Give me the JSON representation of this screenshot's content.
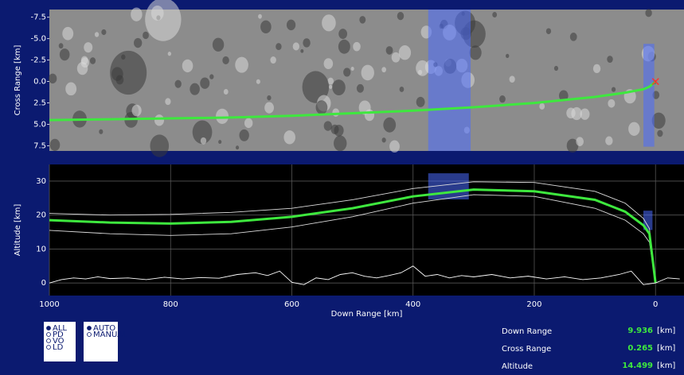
{
  "chart_data": [
    {
      "type": "line",
      "y_label": "Cross Range [km]",
      "xlim": [
        1000,
        -47
      ],
      "ylim": [
        8.1,
        -8.4
      ],
      "yticks": [
        -7.5,
        {
          "value": -5,
          "label": "-5.0"
        },
        -2.5,
        {
          "value": 0,
          "label": "0.0"
        },
        2.5,
        {
          "value": 5,
          "label": "5.0"
        },
        7.5
      ],
      "x": [
        1000,
        900,
        800,
        700,
        600,
        500,
        400,
        300,
        200,
        100,
        50,
        20,
        10,
        0
      ],
      "series": [
        {
          "color": "#3ee83e",
          "values": [
            4.5,
            4.4,
            4.3,
            4.2,
            4.0,
            3.7,
            3.4,
            3.0,
            2.5,
            1.8,
            1.3,
            0.9,
            0.6,
            0.0
          ]
        }
      ],
      "highlight_color": "#4a6bff",
      "highlights": [
        {
          "x": [
            375,
            305
          ],
          "y": [
            8.1,
            -8.4
          ]
        },
        {
          "x": [
            20,
            2
          ],
          "y": [
            7.6,
            -4.4
          ]
        }
      ],
      "target": {
        "x": 0,
        "y": 0,
        "color": "#ff3030"
      }
    },
    {
      "type": "line",
      "x_label": "Down Range [km]",
      "y_label": "Altitude [km]",
      "xlim": [
        1000,
        -47
      ],
      "ylim": [
        -3.7,
        34.9
      ],
      "xticks": [
        1000,
        800,
        600,
        400,
        200,
        0
      ],
      "yticks": [
        0,
        10,
        20,
        30
      ],
      "grid": true,
      "x": [
        1000,
        900,
        800,
        700,
        600,
        500,
        400,
        300,
        200,
        100,
        50,
        20,
        10,
        0
      ],
      "series": [
        {
          "color": "#dddddd",
          "values": [
            20.5,
            20,
            20.2,
            20.8,
            22,
            24.5,
            27.8,
            29.8,
            29.6,
            27,
            23.5,
            19,
            16,
            0
          ]
        },
        {
          "color": "#dddddd",
          "values": [
            15.5,
            14.5,
            14,
            14.5,
            16.5,
            19.5,
            23.5,
            26,
            25.5,
            22,
            18.5,
            14.5,
            12,
            0
          ]
        },
        {
          "color": "#3ee83e",
          "values": [
            18.5,
            17.8,
            17.5,
            18,
            19.5,
            22,
            25.5,
            27.5,
            27,
            24.5,
            21,
            17,
            14.5,
            0
          ]
        },
        {
          "color": "#ffffff",
          "x": [
            1000,
            980,
            960,
            940,
            920,
            900,
            870,
            840,
            810,
            780,
            750,
            720,
            690,
            660,
            640,
            620,
            600,
            580,
            560,
            540,
            520,
            500,
            480,
            460,
            440,
            420,
            400,
            380,
            360,
            340,
            320,
            300,
            270,
            240,
            210,
            180,
            150,
            120,
            90,
            60,
            40,
            20,
            0,
            -20,
            -40
          ],
          "values": [
            0,
            1,
            1.5,
            1.2,
            1.8,
            1.3,
            1.5,
            1,
            1.7,
            1.2,
            1.6,
            1.4,
            2.5,
            3,
            2.2,
            3.5,
            0.2,
            -0.5,
            1.5,
            1,
            2.5,
            3,
            2,
            1.5,
            2.2,
            3,
            5,
            2,
            2.5,
            1.5,
            2.2,
            1.8,
            2.5,
            1.5,
            2,
            1.2,
            1.8,
            1,
            1.5,
            2.5,
            3.5,
            -0.5,
            0,
            1.5,
            1.2
          ]
        }
      ],
      "highlight_color": "#4a6bff",
      "highlights": [
        {
          "x": [
            375,
            308
          ],
          "y": [
            32.3,
            24.6
          ]
        },
        {
          "x": [
            20,
            5
          ],
          "y": [
            21.3,
            15.6
          ]
        }
      ]
    }
  ],
  "phase_options": [
    {
      "label": "ALL",
      "selected": true
    },
    {
      "label": "PD",
      "selected": false
    },
    {
      "label": "VO",
      "selected": false
    },
    {
      "label": "LD",
      "selected": false
    }
  ],
  "mode_options": [
    {
      "label": "AUTO",
      "selected": true
    },
    {
      "label": "MANUAL",
      "selected": false
    }
  ],
  "readouts": [
    {
      "label": "Down Range",
      "value": 9.936,
      "unit": "[km]"
    },
    {
      "label": "Cross Range",
      "value": 0.265,
      "unit": "[km]"
    },
    {
      "label": "Altitude",
      "value": 14.499,
      "unit": "[km]"
    }
  ]
}
